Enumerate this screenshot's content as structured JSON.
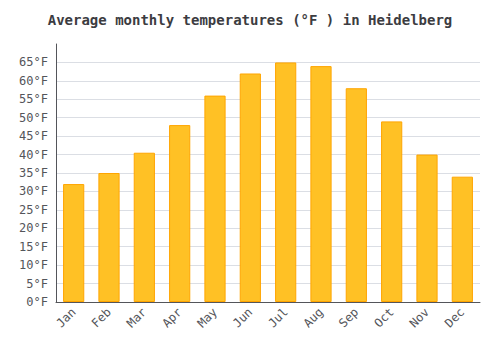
{
  "chart_data": {
    "type": "bar",
    "title": "Average monthly temperatures (°F ) in Heidelberg",
    "categories": [
      "Jan",
      "Feb",
      "Mar",
      "Apr",
      "May",
      "Jun",
      "Jul",
      "Aug",
      "Sep",
      "Oct",
      "Nov",
      "Dec"
    ],
    "values": [
      32,
      35,
      40.5,
      48,
      56,
      62,
      65,
      64,
      58,
      49,
      40,
      34
    ],
    "color": "#FFC125",
    "ylim": [
      0,
      70
    ],
    "yticks": [
      {
        "value": 0,
        "label": "0°F"
      },
      {
        "value": 5,
        "label": "5°F"
      },
      {
        "value": 10,
        "label": "10°F"
      },
      {
        "value": 15,
        "label": "15°F"
      },
      {
        "value": 20,
        "label": "20°F"
      },
      {
        "value": 25,
        "label": "25°F"
      },
      {
        "value": 30,
        "label": "30°F"
      },
      {
        "value": 35,
        "label": "35°F"
      },
      {
        "value": 40,
        "label": "40°F"
      },
      {
        "value": 45,
        "label": "45°F"
      },
      {
        "value": 50,
        "label": "50°F"
      },
      {
        "value": 55,
        "label": "55°F"
      },
      {
        "value": 60,
        "label": "60°F"
      },
      {
        "value": 65,
        "label": "65°F"
      }
    ],
    "grid": true
  }
}
